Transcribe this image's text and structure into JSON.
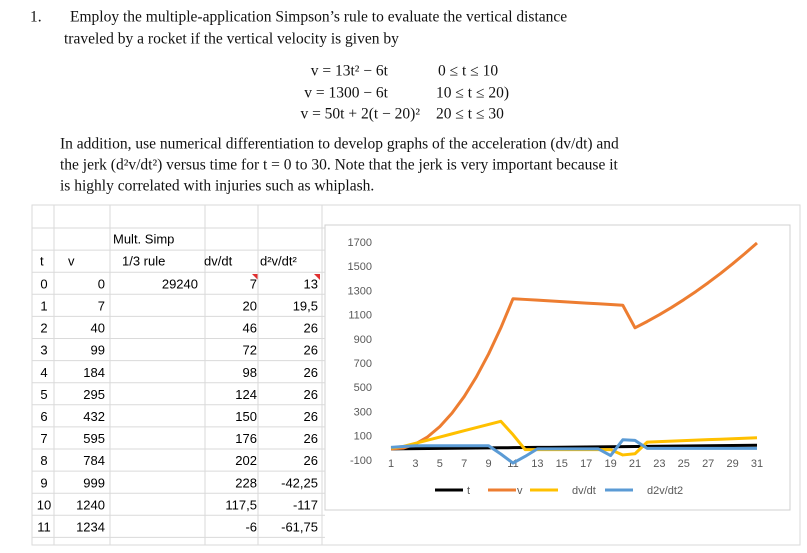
{
  "problem": {
    "number": "1.",
    "intro": [
      "Employ the multiple-application Simpson’s rule to evaluate the vertical distance",
      "traveled by a rocket if the vertical velocity is given by"
    ],
    "equations": [
      {
        "eq": "v = 13t² − 6t",
        "range": "0 ≤ t ≤ 10"
      },
      {
        "eq": "v = 1300 − 6t",
        "range": "10 ≤ t ≤ 20)"
      },
      {
        "eq": "v = 50t + 2(t − 20)²",
        "range": "20 ≤ t ≤ 30"
      }
    ],
    "paragraph": [
      "In addition, use numerical differentiation to develop graphs of the acceleration (dv/dt) and",
      "the jerk (d²v/dt²) versus time for t = 0 to 30. Note that the jerk is very important because it",
      "is highly correlated with injuries such as whiplash."
    ]
  },
  "table": {
    "header": [
      "t",
      "v",
      "Mult. Simp",
      "1/3 rule",
      "dv/dt",
      "d²v/dt²"
    ],
    "simpson": "29240",
    "rows": [
      [
        "0",
        "0",
        "7",
        "13"
      ],
      [
        "1",
        "7",
        "20",
        "19,5"
      ],
      [
        "2",
        "40",
        "46",
        "26"
      ],
      [
        "3",
        "99",
        "72",
        "26"
      ],
      [
        "4",
        "184",
        "98",
        "26"
      ],
      [
        "5",
        "295",
        "124",
        "26"
      ],
      [
        "6",
        "432",
        "150",
        "26"
      ],
      [
        "7",
        "595",
        "176",
        "26"
      ],
      [
        "8",
        "784",
        "202",
        "26"
      ],
      [
        "9",
        "999",
        "228",
        "-42,25"
      ],
      [
        "10",
        "1240",
        "117,5",
        "-117"
      ],
      [
        "11",
        "1234",
        "-6",
        "-61,75"
      ]
    ]
  },
  "chart_data": {
    "type": "line",
    "legend": "bottom",
    "categories": [
      1,
      null,
      3,
      null,
      5,
      null,
      7,
      null,
      9,
      null,
      11,
      null,
      13,
      null,
      15,
      null,
      17,
      null,
      19,
      null,
      21,
      null,
      23,
      null,
      25,
      null,
      27,
      null,
      29,
      null,
      31
    ],
    "ylim": [
      -100,
      1700
    ],
    "yticks": [
      -100,
      100,
      300,
      500,
      700,
      900,
      1100,
      1300,
      1500,
      1700
    ],
    "series": [
      {
        "name": "t",
        "color": "#000000",
        "values": [
          0,
          1,
          2,
          3,
          4,
          5,
          6,
          7,
          8,
          9,
          10,
          11,
          12,
          13,
          14,
          15,
          16,
          17,
          18,
          19,
          20,
          21,
          22,
          23,
          24,
          25,
          26,
          27,
          28,
          29,
          30
        ]
      },
      {
        "name": "v",
        "color": "#ed7d31",
        "values": [
          0,
          7,
          40,
          99,
          184,
          295,
          432,
          595,
          784,
          999,
          1240,
          1234,
          1228,
          1222,
          1216,
          1210,
          1204,
          1198,
          1192,
          1186,
          1000,
          1052,
          1108,
          1168,
          1232,
          1300,
          1372,
          1448,
          1528,
          1612,
          1700
        ]
      },
      {
        "name": "dv/dt",
        "color": "#ffc000",
        "values": [
          7,
          20,
          46,
          72,
          98,
          124,
          150,
          176,
          202,
          228,
          117.5,
          -6,
          -6,
          -6,
          -6,
          -6,
          -6,
          -6,
          -6,
          -50,
          -40,
          56,
          60,
          64,
          68,
          72,
          76,
          80,
          84,
          88,
          92
        ]
      },
      {
        "name": "d2v/dt2",
        "color": "#5b9bd5",
        "values": [
          13,
          19.5,
          26,
          26,
          26,
          26,
          26,
          26,
          26,
          -42.25,
          -117,
          -61.75,
          0,
          0,
          0,
          0,
          0,
          0,
          -55,
          75,
          70,
          4,
          4,
          4,
          4,
          4,
          4,
          4,
          4,
          4,
          4
        ]
      }
    ]
  }
}
